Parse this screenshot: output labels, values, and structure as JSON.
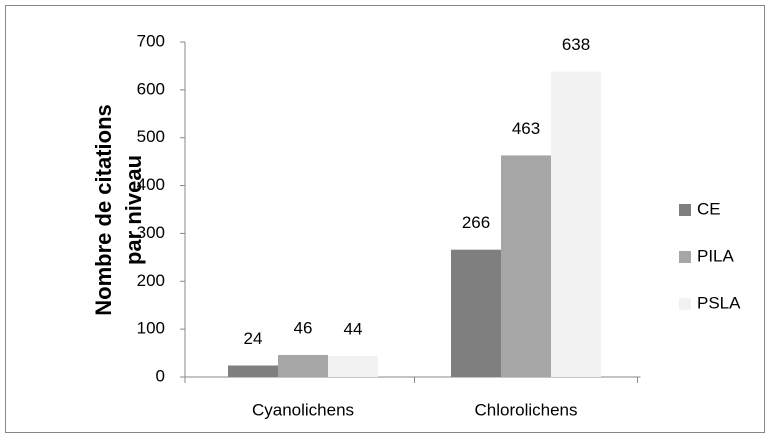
{
  "chart_data": {
    "type": "bar",
    "ylabel": [
      "Nombre de citations",
      "par niveau"
    ],
    "categories": [
      "Cyanolichens",
      "Chlorolichens"
    ],
    "series": [
      {
        "name": "CE",
        "color": "#7f7f7f",
        "values": [
          24,
          266
        ]
      },
      {
        "name": "PILA",
        "color": "#a6a6a6",
        "values": [
          46,
          463
        ]
      },
      {
        "name": "PSLA",
        "color": "#f2f2f2",
        "values": [
          44,
          638
        ]
      }
    ],
    "ylim": [
      0,
      700
    ],
    "yticks": [
      0,
      100,
      200,
      300,
      400,
      500,
      600,
      700
    ],
    "grid": false,
    "legend": "right"
  }
}
